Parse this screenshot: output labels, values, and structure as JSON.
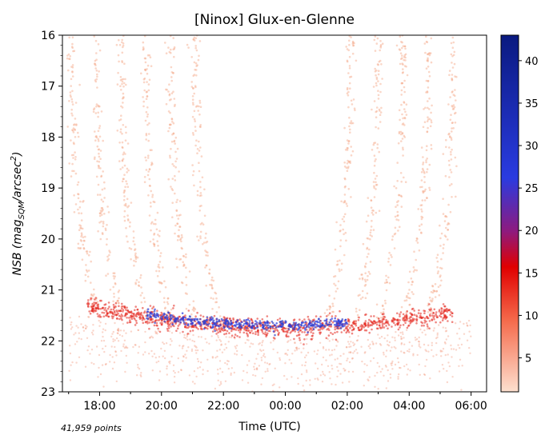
{
  "chart_data": {
    "type": "scatter",
    "title": "[Ninox] Glux-en-Glenne",
    "xlabel": "Time (UTC)",
    "ylabel": {
      "prefix": "NSB (mag",
      "sub": "SQM",
      "middle": "/arcsec",
      "sup": "2",
      "suffix": ")"
    },
    "x_tick_labels": [
      "18:00",
      "20:00",
      "22:00",
      "00:00",
      "02:00",
      "04:00",
      "06:00"
    ],
    "x_ticks_hours": [
      18,
      20,
      22,
      24,
      26,
      28,
      30
    ],
    "xlim_hours": [
      16.8,
      30.5
    ],
    "y_tick_labels": [
      "16",
      "17",
      "18",
      "19",
      "20",
      "21",
      "22",
      "23"
    ],
    "ylim": [
      16,
      23
    ],
    "y_inverted": true,
    "colorbar": {
      "ticks": [
        5,
        10,
        15,
        20,
        25,
        30,
        35,
        40
      ],
      "range": [
        1,
        43
      ],
      "colormap": [
        "#fde0cf",
        "#ef3b2c",
        "#e00000",
        "#8e1a7e",
        "#2a3be0",
        "#0a1a80"
      ]
    },
    "annotation": "41,959 points",
    "night_profile": {
      "dusk_branches_hours": [
        17.1,
        17.9,
        18.7,
        19.5,
        20.3,
        21.1
      ],
      "dawn_branches_hours": [
        26.1,
        27.0,
        27.8,
        28.6,
        29.4
      ],
      "floor_mag_edges": 21.3,
      "floor_mag_center": 21.75,
      "densest_band_hours": [
        19.5,
        26.0
      ],
      "densest_band_mag": 21.65
    }
  }
}
